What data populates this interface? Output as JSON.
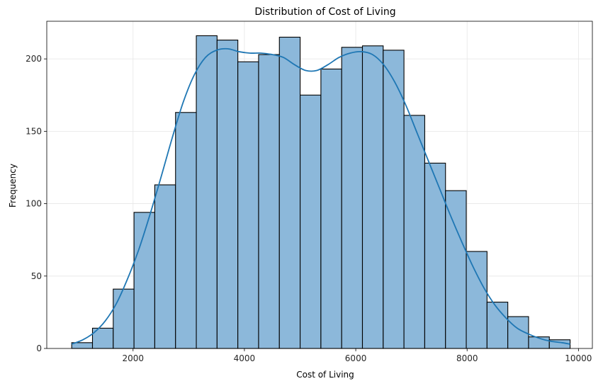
{
  "chart_data": {
    "type": "bar",
    "title": "Distribution of Cost of Living",
    "xlabel": "Cost of Living",
    "ylabel": "Frequency",
    "xlim": [
      450,
      10250
    ],
    "ylim": [
      0,
      226
    ],
    "xticks": [
      2000,
      4000,
      6000,
      8000,
      10000
    ],
    "yticks": [
      0,
      50,
      100,
      150,
      200
    ],
    "grid": true,
    "bin_edges": [
      898,
      1271,
      1644,
      2017,
      2390,
      2763,
      3136,
      3509,
      3882,
      4255,
      4628,
      5001,
      5374,
      5747,
      6120,
      6493,
      6866,
      7239,
      7612,
      7985,
      8358,
      8731,
      9104,
      9477,
      9850
    ],
    "values": [
      4,
      14,
      41,
      94,
      113,
      163,
      216,
      213,
      198,
      203,
      215,
      175,
      193,
      208,
      209,
      206,
      161,
      128,
      109,
      67,
      32,
      22,
      8,
      6
    ],
    "bar_color": "#8cb8da",
    "edge_color": "#000000",
    "kde": {
      "color": "#1f77b4",
      "x": [
        898,
        1100,
        1300,
        1500,
        1700,
        1900,
        2100,
        2300,
        2500,
        2700,
        2900,
        3100,
        3300,
        3500,
        3700,
        3900,
        4100,
        4300,
        4500,
        4700,
        4900,
        5100,
        5300,
        5500,
        5700,
        5900,
        6100,
        6300,
        6500,
        6700,
        6900,
        7100,
        7300,
        7500,
        7700,
        7900,
        8100,
        8300,
        8500,
        8700,
        8900,
        9100,
        9300,
        9500,
        9700,
        9850
      ],
      "y": [
        3,
        6,
        11,
        19,
        31,
        48,
        68,
        92,
        118,
        145,
        170,
        189,
        201,
        206,
        207,
        205,
        204,
        204,
        203,
        201,
        196,
        192,
        192,
        196,
        201,
        204,
        205,
        203,
        196,
        184,
        168,
        149,
        130,
        111,
        92,
        74,
        57,
        42,
        30,
        21,
        14,
        10,
        7,
        5,
        4,
        3
      ]
    }
  }
}
